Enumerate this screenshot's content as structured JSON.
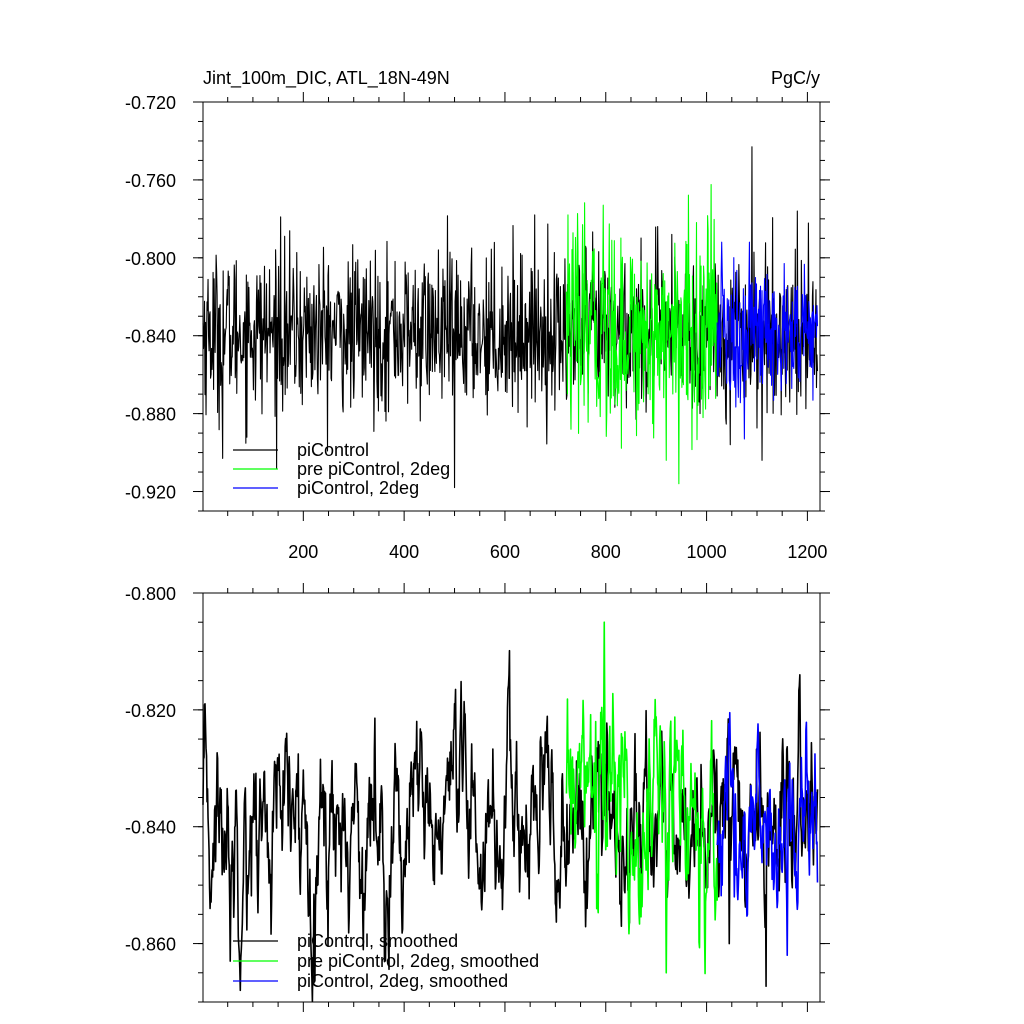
{
  "figure": {
    "colors": {
      "piControl": "#000000",
      "pre_piControl_2deg": "#00ff00",
      "piControl_2deg": "#0000ff"
    }
  },
  "chart_data": [
    {
      "type": "line",
      "title": "Jint_100m_DIC, ATL_18N-49N",
      "units": "PgC/y",
      "xlim": [
        1,
        1225
      ],
      "ylim": [
        -0.93,
        -0.72
      ],
      "xticks": [
        200,
        400,
        600,
        800,
        1000,
        1200
      ],
      "xtick_labels": [
        "200",
        "400",
        "600",
        "800",
        "1000",
        "1200"
      ],
      "yticks": [
        -0.72,
        -0.76,
        -0.8,
        -0.84,
        -0.88,
        -0.92
      ],
      "ytick_labels": [
        "-0.720",
        "-0.760",
        "-0.800",
        "-0.840",
        "-0.880",
        "-0.920"
      ],
      "legend_position": "bottom-left",
      "series": [
        {
          "name": "piControl",
          "color": "#000000",
          "x_start": 1,
          "x_end": 1220,
          "mean": -0.838,
          "amp": 0.02,
          "highlights": [
            [
              155,
              -0.779
            ],
            [
              1090,
              -0.743
            ],
            [
              1180,
              -0.776
            ],
            [
              500,
              -0.918
            ],
            [
              1110,
              -0.904
            ],
            [
              40,
              -0.903
            ]
          ]
        },
        {
          "name": "pre piControl, 2deg",
          "color": "#00ff00",
          "x_start": 722,
          "x_end": 1021,
          "mean": -0.838,
          "amp": 0.026,
          "highlights": [
            [
              725,
              -0.778
            ],
            [
              795,
              -0.773
            ],
            [
              945,
              -0.916
            ],
            [
              920,
              -0.904
            ]
          ]
        },
        {
          "name": "piControl, 2deg",
          "color": "#0000ff",
          "x_start": 1021,
          "x_end": 1220,
          "mean": -0.84,
          "amp": 0.018,
          "highlights": [
            [
              1030,
              -0.792
            ],
            [
              1085,
              -0.792
            ],
            [
              1075,
              -0.893
            ]
          ]
        }
      ]
    },
    {
      "type": "line",
      "title": "",
      "xlim": [
        1,
        1225
      ],
      "ylim": [
        -0.87,
        -0.8
      ],
      "yticks": [
        -0.8,
        -0.82,
        -0.84,
        -0.86
      ],
      "ytick_labels": [
        "-0.800",
        "-0.820",
        "-0.840",
        "-0.860"
      ],
      "legend_position": "bottom-left",
      "series": [
        {
          "name": "piControl, smoothed",
          "color": "#000000",
          "x_start": 1,
          "x_end": 1220,
          "mean": -0.84,
          "amp": 0.008,
          "highlights": [
            [
              1185,
              -0.814
            ],
            [
              1045,
              -0.86
            ],
            [
              55,
              -0.863
            ],
            [
              15,
              -0.854
            ]
          ]
        },
        {
          "name": "pre piControl, 2deg, smoothed",
          "color": "#00ff00",
          "x_start": 722,
          "x_end": 1021,
          "mean": -0.836,
          "amp": 0.009,
          "highlights": [
            [
              797,
              -0.805
            ],
            [
              920,
              -0.865
            ],
            [
              780,
              -0.822
            ]
          ]
        },
        {
          "name": "piControl, 2deg, smoothed",
          "color": "#0000ff",
          "x_start": 1021,
          "x_end": 1220,
          "mean": -0.841,
          "amp": 0.007,
          "highlights": [
            [
              1160,
              -0.862
            ],
            [
              1055,
              -0.852
            ]
          ]
        }
      ]
    }
  ]
}
